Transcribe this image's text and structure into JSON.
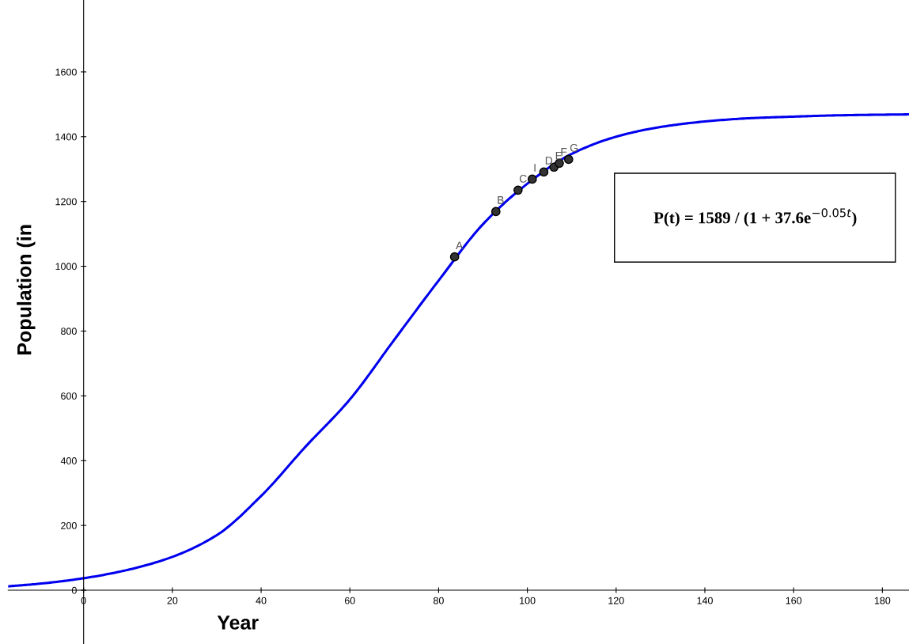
{
  "chart_data": {
    "type": "line",
    "xlabel": "Year",
    "ylabel": "Population (in",
    "xlim": [
      -17,
      186
    ],
    "ylim": [
      -166,
      1822
    ],
    "xticks": [
      0,
      20,
      40,
      60,
      80,
      100,
      120,
      140,
      160,
      180
    ],
    "yticks": [
      0,
      200,
      400,
      600,
      800,
      1000,
      1200,
      1400,
      1600
    ],
    "grid": false,
    "series": [
      {
        "color": "#0000ee",
        "marker": "none",
        "line_style": "solid",
        "x": [
          -17,
          -10,
          0,
          10,
          20,
          30,
          40,
          50,
          60,
          70,
          80,
          90,
          100,
          110,
          120,
          130,
          140,
          150,
          160,
          170,
          186
        ],
        "values": [
          12,
          20,
          37,
          63,
          103,
          170,
          291,
          443,
          589,
          773,
          956,
          1130,
          1255,
          1347,
          1400,
          1430,
          1447,
          1457,
          1462,
          1466,
          1469
        ]
      },
      {
        "type": "scatter",
        "color": "#333333",
        "marker": "circle",
        "x": [
          83.6,
          92.9,
          97.9,
          101.1,
          103.7,
          106,
          107.2,
          109.3
        ],
        "values": [
          1029,
          1169,
          1235,
          1269,
          1291,
          1306,
          1318,
          1330
        ]
      }
    ],
    "annotations": [
      {
        "text": "A",
        "x": 83.6,
        "y": 1029
      },
      {
        "text": "B",
        "x": 92.9,
        "y": 1169
      },
      {
        "text": "C",
        "x": 97.9,
        "y": 1235
      },
      {
        "text": "I",
        "x": 101.1,
        "y": 1269
      },
      {
        "text": "D",
        "x": 103.7,
        "y": 1291
      },
      {
        "text": "E",
        "x": 106,
        "y": 1306
      },
      {
        "text": "F",
        "x": 107.2,
        "y": 1318
      },
      {
        "text": "G",
        "x": 109.3,
        "y": 1330
      },
      "P(t) = 1589 / (1 + 37.6e$^{−0.05t}$)"
    ]
  }
}
